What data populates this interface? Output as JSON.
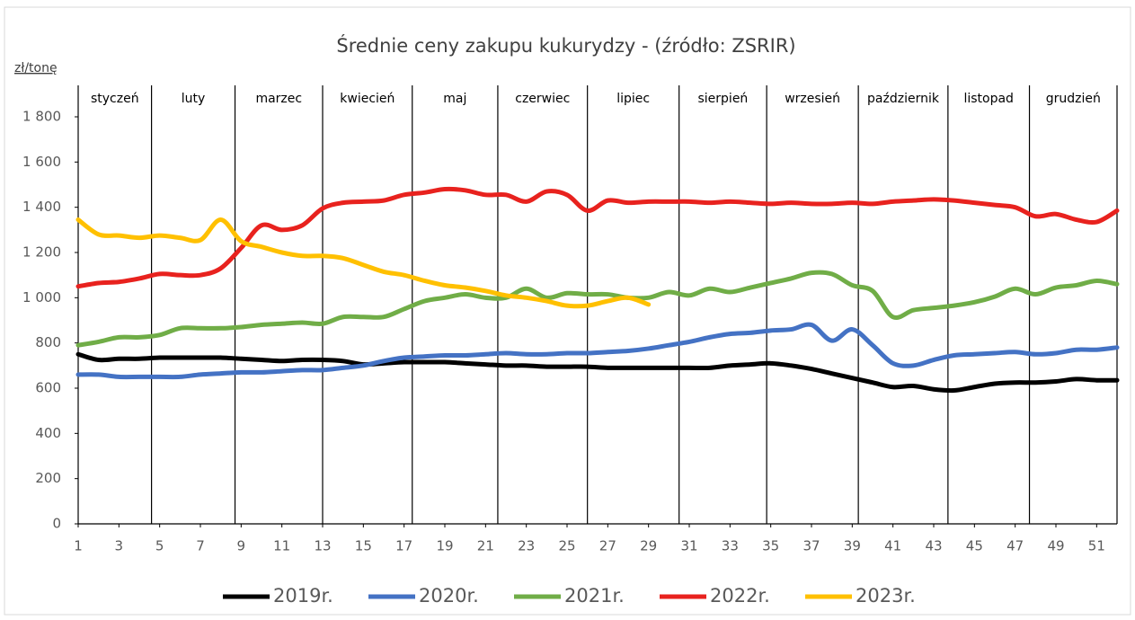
{
  "chart_data": {
    "type": "line",
    "title": "Średnie ceny zakupu kukurydzy - (źródło: ZSRIR)",
    "y_unit": "zł/tonę",
    "months": [
      "styczeń",
      "luty",
      "marzec",
      "kwiecień",
      "maj",
      "czerwiec",
      "lipiec",
      "sierpień",
      "wrzesień",
      "październik",
      "listopad",
      "grudzień"
    ],
    "month_bounds": [
      4.6,
      8.7,
      13,
      17.4,
      21.6,
      26,
      30.5,
      34.8,
      39.3,
      43.7,
      47.7
    ],
    "x": [
      1,
      2,
      3,
      4,
      5,
      6,
      7,
      8,
      9,
      10,
      11,
      12,
      13,
      14,
      15,
      16,
      17,
      18,
      19,
      20,
      21,
      22,
      23,
      24,
      25,
      26,
      27,
      28,
      29,
      30,
      31,
      32,
      33,
      34,
      35,
      36,
      37,
      38,
      39,
      40,
      41,
      42,
      43,
      44,
      45,
      46,
      47,
      48,
      49,
      50,
      51,
      52
    ],
    "xlim": [
      1,
      52
    ],
    "xticks": [
      1,
      3,
      5,
      7,
      9,
      11,
      13,
      15,
      17,
      19,
      21,
      23,
      25,
      27,
      29,
      31,
      33,
      35,
      37,
      39,
      41,
      43,
      45,
      47,
      49,
      51
    ],
    "ylim": [
      0,
      1800
    ],
    "yticks": [
      0,
      200,
      400,
      600,
      800,
      {
        "value": 1000,
        "label": "1 000"
      },
      {
        "value": 1200,
        "label": "1 200"
      },
      {
        "value": 1400,
        "label": "1 400"
      },
      {
        "value": 1600,
        "label": "1 600"
      },
      {
        "value": 1800,
        "label": "1 800"
      }
    ],
    "grid": false,
    "legend": "bottom",
    "series": [
      {
        "name": "2019r.",
        "color": "#000000",
        "values": [
          750,
          725,
          730,
          730,
          735,
          735,
          735,
          735,
          730,
          725,
          720,
          725,
          725,
          720,
          705,
          710,
          715,
          715,
          715,
          710,
          705,
          700,
          700,
          695,
          695,
          695,
          690,
          690,
          690,
          690,
          690,
          690,
          700,
          705,
          710,
          700,
          685,
          665,
          645,
          625,
          605,
          610,
          595,
          590,
          605,
          620,
          625,
          625,
          630,
          640,
          635,
          635
        ]
      },
      {
        "name": "2020r.",
        "color": "#4472c4",
        "values": [
          660,
          660,
          650,
          650,
          650,
          650,
          660,
          665,
          670,
          670,
          675,
          680,
          680,
          690,
          700,
          720,
          735,
          740,
          745,
          745,
          750,
          755,
          750,
          750,
          755,
          755,
          760,
          765,
          775,
          790,
          805,
          825,
          840,
          845,
          855,
          860,
          880,
          810,
          860,
          790,
          710,
          700,
          725,
          745,
          750,
          755,
          760,
          750,
          755,
          770,
          770,
          780
        ]
      },
      {
        "name": "2021r.",
        "color": "#70ad47",
        "values": [
          790,
          805,
          825,
          825,
          835,
          865,
          865,
          865,
          870,
          880,
          885,
          890,
          885,
          915,
          915,
          915,
          950,
          985,
          1000,
          1015,
          1000,
          1000,
          1040,
          1000,
          1020,
          1015,
          1015,
          1000,
          1000,
          1025,
          1010,
          1040,
          1025,
          1045,
          1065,
          1085,
          1110,
          1105,
          1055,
          1030,
          915,
          945,
          955,
          965,
          980,
          1005,
          1040,
          1015,
          1045,
          1055,
          1075,
          1060
        ]
      },
      {
        "name": "2022r.",
        "color": "#e8221e",
        "values": [
          1050,
          1065,
          1070,
          1085,
          1105,
          1100,
          1100,
          1130,
          1220,
          1320,
          1300,
          1320,
          1395,
          1420,
          1425,
          1430,
          1455,
          1465,
          1480,
          1475,
          1455,
          1455,
          1425,
          1470,
          1455,
          1385,
          1430,
          1420,
          1425,
          1425,
          1425,
          1420,
          1425,
          1420,
          1415,
          1420,
          1415,
          1415,
          1420,
          1415,
          1425,
          1430,
          1435,
          1430,
          1420,
          1410,
          1400,
          1360,
          1370,
          1345,
          1335,
          1385
        ]
      },
      {
        "name": "2023r.",
        "color": "#ffc000",
        "values": [
          1345,
          1280,
          1275,
          1265,
          1275,
          1265,
          1255,
          1345,
          1250,
          1225,
          1200,
          1185,
          1185,
          1175,
          1145,
          1115,
          1100,
          1075,
          1055,
          1045,
          1030,
          1010,
          1000,
          985,
          965,
          965,
          985,
          1000,
          970,
          null,
          null,
          null,
          null,
          null,
          null,
          null,
          null,
          null,
          null,
          null,
          null,
          null,
          null,
          null,
          null,
          null,
          null,
          null,
          null,
          null,
          null,
          null
        ]
      }
    ]
  }
}
